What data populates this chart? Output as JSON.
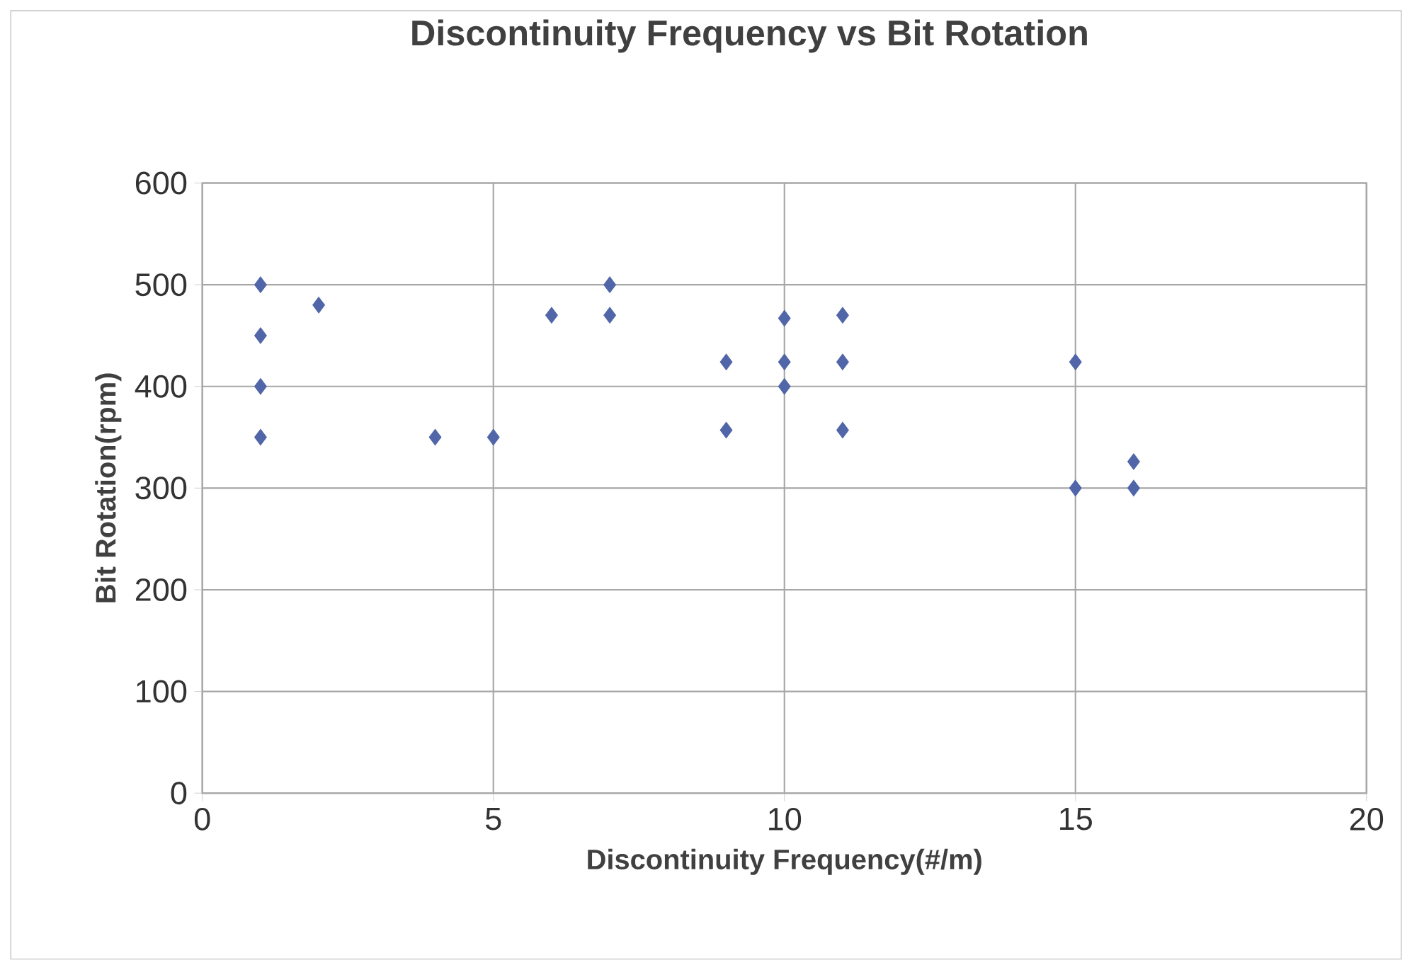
{
  "chart_data": {
    "type": "scatter",
    "title": "Discontinuity Frequency vs Bit Rotation",
    "xlabel": "Discontinuity Frequency(#/m)",
    "ylabel": "Bit Rotation(rpm)",
    "x": [
      1,
      1,
      1,
      1,
      2,
      4,
      5,
      6,
      7,
      7,
      9,
      9,
      10,
      10,
      10,
      11,
      11,
      11,
      15,
      15,
      16,
      16
    ],
    "values": [
      500,
      450,
      400,
      350,
      480,
      350,
      350,
      470,
      500,
      470,
      424,
      357,
      467,
      424,
      400,
      470,
      424,
      357,
      424,
      300,
      326,
      300
    ],
    "color": "#5066a8",
    "marker": "diamond",
    "grid": true,
    "xlim": [
      0,
      20
    ],
    "xticks": [
      0,
      5,
      10,
      15,
      20
    ],
    "ylim": [
      0,
      600
    ],
    "yticks": [
      0,
      100,
      200,
      300,
      400,
      500,
      600
    ]
  }
}
